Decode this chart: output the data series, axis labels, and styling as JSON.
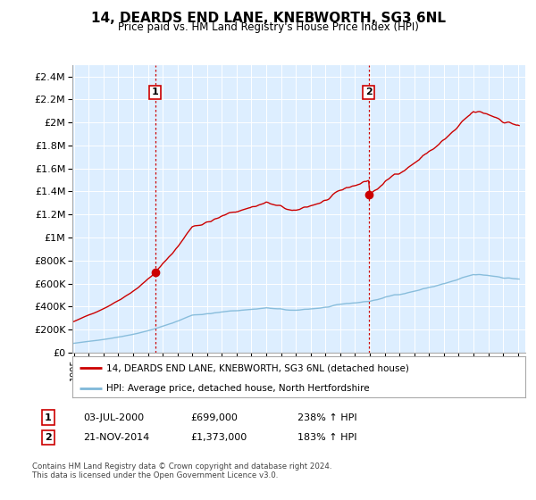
{
  "title": "14, DEARDS END LANE, KNEBWORTH, SG3 6NL",
  "subtitle": "Price paid vs. HM Land Registry's House Price Index (HPI)",
  "legend_line1": "14, DEARDS END LANE, KNEBWORTH, SG3 6NL (detached house)",
  "legend_line2": "HPI: Average price, detached house, North Hertfordshire",
  "transaction1_label": "1",
  "transaction1_date": "03-JUL-2000",
  "transaction1_price": "£699,000",
  "transaction1_hpi": "238% ↑ HPI",
  "transaction1_year": 2000.5,
  "transaction1_value": 699000,
  "transaction2_label": "2",
  "transaction2_date": "21-NOV-2014",
  "transaction2_price": "£1,373,000",
  "transaction2_hpi": "183% ↑ HPI",
  "transaction2_year": 2014.917,
  "transaction2_value": 1373000,
  "hpi_color": "#7fb8d8",
  "price_color": "#cc0000",
  "marker_color": "#cc0000",
  "vline_color": "#cc0000",
  "background_color": "#ffffff",
  "plot_bg_color": "#ddeeff",
  "grid_color": "#ffffff",
  "ylim_min": 0,
  "ylim_max": 2500000,
  "xlim_min": 1994.9,
  "xlim_max": 2025.5,
  "footnote": "Contains HM Land Registry data © Crown copyright and database right 2024.\nThis data is licensed under the Open Government Licence v3.0."
}
